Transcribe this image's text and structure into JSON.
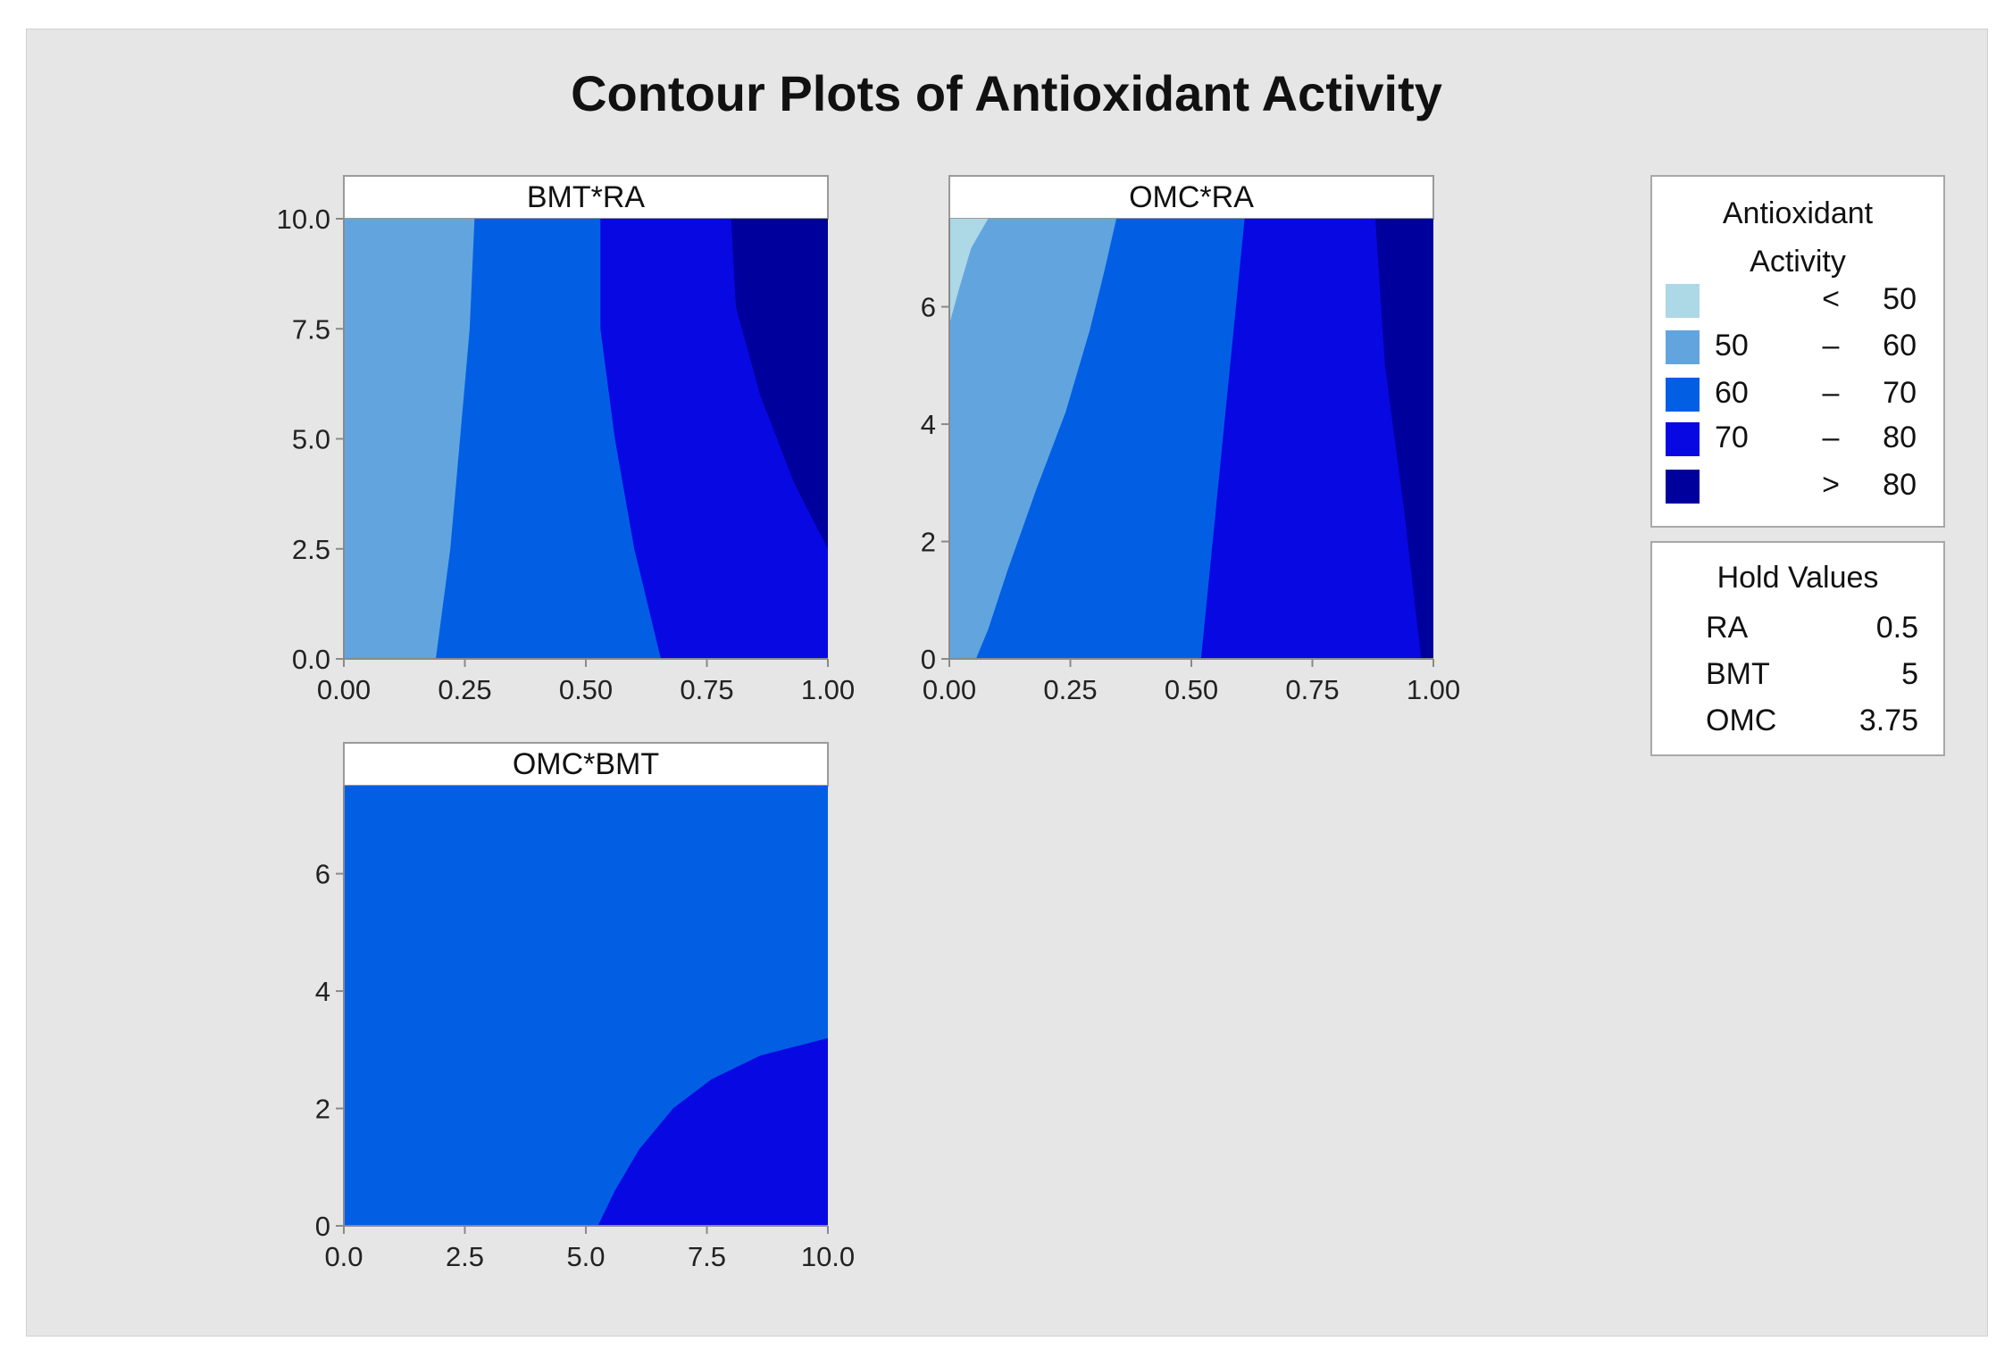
{
  "title": "Contour Plots of Antioxidant Activity",
  "colors": {
    "band_lt50": "#add8e6",
    "band_50_60": "#62a5de",
    "band_60_70": "#025fe4",
    "band_70_80": "#0808e3",
    "band_gt80": "#00009c"
  },
  "legend": {
    "title_line1": "Antioxidant",
    "title_line2": "Activity",
    "entries": [
      {
        "low": "",
        "op": "<",
        "high": "50",
        "color": "#add8e6"
      },
      {
        "low": "50",
        "op": "–",
        "high": "60",
        "color": "#62a5de"
      },
      {
        "low": "60",
        "op": "–",
        "high": "70",
        "color": "#025fe4"
      },
      {
        "low": "70",
        "op": "–",
        "high": "80",
        "color": "#0808e3"
      },
      {
        "low": "",
        "op": ">",
        "high": "80",
        "color": "#00009c"
      }
    ]
  },
  "hold_values": {
    "title": "Hold Values",
    "rows": [
      {
        "name": "RA",
        "value": "0.5"
      },
      {
        "name": "BMT",
        "value": "5"
      },
      {
        "name": "OMC",
        "value": "3.75"
      }
    ]
  },
  "chart_data": [
    {
      "type": "contour",
      "panel_label": "BMT*RA",
      "xlim": [
        0,
        1
      ],
      "ylim": [
        0,
        10
      ],
      "x_ticks": [
        "0.00",
        "0.25",
        "0.50",
        "0.75",
        "1.00"
      ],
      "x_tick_values": [
        0,
        0.25,
        0.5,
        0.75,
        1
      ],
      "y_ticks": [
        "0.0",
        "2.5",
        "5.0",
        "7.5",
        "10.0"
      ],
      "y_tick_values": [
        0,
        2.5,
        5,
        7.5,
        10
      ],
      "base_color": "#62a5de",
      "regions": [
        {
          "level": "60 – 70",
          "color": "#025fe4",
          "polygon": [
            [
              0.19,
              0
            ],
            [
              0.22,
              2.5
            ],
            [
              0.24,
              5
            ],
            [
              0.26,
              7.5
            ],
            [
              0.27,
              10
            ],
            [
              1,
              10
            ],
            [
              1,
              0
            ]
          ]
        },
        {
          "level": "70 – 80",
          "color": "#0808e3",
          "polygon": [
            [
              0.655,
              0
            ],
            [
              0.6,
              2.5
            ],
            [
              0.56,
              5
            ],
            [
              0.53,
              7.5
            ],
            [
              0.53,
              10
            ],
            [
              1,
              10
            ],
            [
              1,
              0
            ]
          ]
        },
        {
          "level": "> 80",
          "color": "#00009c",
          "polygon": [
            [
              1,
              2.5
            ],
            [
              0.93,
              4
            ],
            [
              0.86,
              6
            ],
            [
              0.81,
              8
            ],
            [
              0.8,
              10
            ],
            [
              1,
              10
            ]
          ]
        }
      ]
    },
    {
      "type": "contour",
      "panel_label": "OMC*RA",
      "xlim": [
        0,
        1
      ],
      "ylim": [
        0,
        7.5
      ],
      "x_ticks": [
        "0.00",
        "0.25",
        "0.50",
        "0.75",
        "1.00"
      ],
      "x_tick_values": [
        0,
        0.25,
        0.5,
        0.75,
        1
      ],
      "y_ticks": [
        "0",
        "2",
        "4",
        "6"
      ],
      "y_tick_values": [
        0,
        2,
        4,
        6
      ],
      "base_color": "#62a5de",
      "regions": [
        {
          "level": "< 50",
          "color": "#add8e6",
          "polygon": [
            [
              0,
              7.5
            ],
            [
              0,
              5.7
            ],
            [
              0.02,
              6.3
            ],
            [
              0.045,
              7.0
            ],
            [
              0.08,
              7.5
            ]
          ]
        },
        {
          "level": "60 – 70",
          "color": "#025fe4",
          "polygon": [
            [
              0.055,
              0
            ],
            [
              0.08,
              0.5
            ],
            [
              0.12,
              1.5
            ],
            [
              0.18,
              2.9
            ],
            [
              0.24,
              4.2
            ],
            [
              0.29,
              5.6
            ],
            [
              0.32,
              6.6
            ],
            [
              0.345,
              7.5
            ],
            [
              1,
              7.5
            ],
            [
              1,
              0
            ]
          ]
        },
        {
          "level": "70 – 80",
          "color": "#0808e3",
          "polygon": [
            [
              0.52,
              0
            ],
            [
              0.55,
              2.5
            ],
            [
              0.58,
              5
            ],
            [
              0.61,
              7.5
            ],
            [
              1,
              7.5
            ],
            [
              1,
              0
            ]
          ]
        },
        {
          "level": "> 80",
          "color": "#00009c",
          "polygon": [
            [
              0.975,
              0
            ],
            [
              0.94,
              2.5
            ],
            [
              0.9,
              5
            ],
            [
              0.88,
              7.5
            ],
            [
              1,
              7.5
            ],
            [
              1,
              0
            ]
          ]
        }
      ]
    },
    {
      "type": "contour",
      "panel_label": "OMC*BMT",
      "xlim": [
        0,
        10
      ],
      "ylim": [
        0,
        7.5
      ],
      "x_ticks": [
        "0.0",
        "2.5",
        "5.0",
        "7.5",
        "10.0"
      ],
      "x_tick_values": [
        0,
        2.5,
        5,
        7.5,
        10
      ],
      "y_ticks": [
        "0",
        "2",
        "4",
        "6"
      ],
      "y_tick_values": [
        0,
        2,
        4,
        6
      ],
      "base_color": "#025fe4",
      "regions": [
        {
          "level": "70 – 80",
          "color": "#0808e3",
          "polygon": [
            [
              5.25,
              0
            ],
            [
              5.6,
              0.6
            ],
            [
              6.1,
              1.3
            ],
            [
              6.8,
              2.0
            ],
            [
              7.6,
              2.5
            ],
            [
              8.6,
              2.9
            ],
            [
              10,
              3.2
            ],
            [
              10,
              0
            ]
          ]
        }
      ]
    }
  ]
}
